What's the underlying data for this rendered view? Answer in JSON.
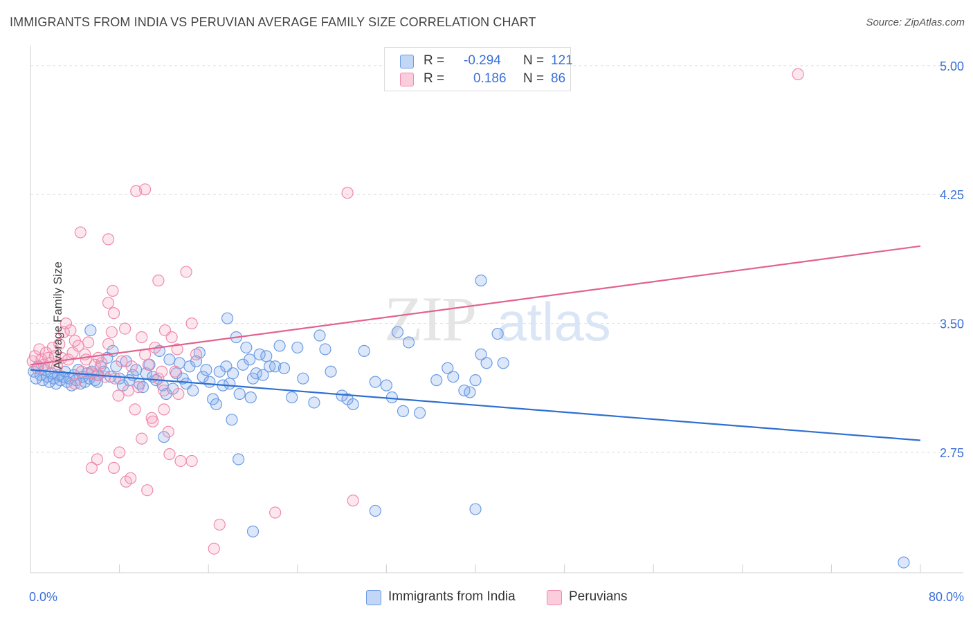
{
  "header": {
    "title": "IMMIGRANTS FROM INDIA VS PERUVIAN AVERAGE FAMILY SIZE CORRELATION CHART",
    "source": "Source: ZipAtlas.com"
  },
  "watermark": {
    "zip": "ZIP",
    "atlas": "atlas"
  },
  "legend_top": [
    {
      "r_label": "R =",
      "r_value": "-0.294",
      "n_label": "N =",
      "n_value": "121"
    },
    {
      "r_label": "R =",
      "r_value": "0.186",
      "n_label": "N =",
      "n_value": "86"
    }
  ],
  "legend_bottom": [
    "Immigrants from India",
    "Peruvians"
  ],
  "chart_data": {
    "type": "scatter",
    "title": "IMMIGRANTS FROM INDIA VS PERUVIAN AVERAGE FAMILY SIZE CORRELATION CHART",
    "xlabel": "",
    "ylabel": "Average Family Size",
    "xlim": [
      0,
      80
    ],
    "ylim": [
      2.05,
      5.1
    ],
    "x_tick_labels": [
      "0.0%",
      "80.0%"
    ],
    "y_ticks": [
      2.75,
      3.5,
      4.25,
      5.0
    ],
    "y_tick_labels": [
      "2.75",
      "3.50",
      "4.25",
      "5.00"
    ],
    "grid": true,
    "legend_position": "top-center",
    "colors": {
      "india": "#6a9be6",
      "peru": "#f08aaa",
      "india_line": "#2f6fd1",
      "peru_line": "#e2628e",
      "tick_label": "#3a6fd8"
    },
    "series": [
      {
        "name": "Immigrants from India",
        "r": -0.294,
        "n": 121,
        "trend": [
          [
            0,
            3.23
          ],
          [
            80,
            2.82
          ]
        ],
        "points": [
          [
            0.3,
            3.22
          ],
          [
            0.5,
            3.18
          ],
          [
            0.7,
            3.25
          ],
          [
            0.9,
            3.2
          ],
          [
            1.1,
            3.17
          ],
          [
            1.3,
            3.23
          ],
          [
            1.5,
            3.19
          ],
          [
            1.7,
            3.16
          ],
          [
            1.9,
            3.21
          ],
          [
            2.1,
            3.18
          ],
          [
            2.3,
            3.15
          ],
          [
            2.5,
            3.2
          ],
          [
            2.7,
            3.17
          ],
          [
            2.9,
            3.19
          ],
          [
            3.1,
            3.22
          ],
          [
            3.3,
            3.16
          ],
          [
            3.5,
            3.18
          ],
          [
            3.7,
            3.14
          ],
          [
            3.9,
            3.2
          ],
          [
            4.1,
            3.17
          ],
          [
            4.3,
            3.23
          ],
          [
            4.5,
            3.15
          ],
          [
            4.7,
            3.19
          ],
          [
            4.9,
            3.16
          ],
          [
            5.1,
            3.21
          ],
          [
            5.3,
            3.18
          ],
          [
            5.5,
            3.22
          ],
          [
            5.8,
            3.17
          ],
          [
            6.1,
            3.2
          ],
          [
            6.3,
            3.25
          ],
          [
            5.4,
            3.46
          ],
          [
            6.0,
            3.16
          ],
          [
            6.6,
            3.22
          ],
          [
            6.9,
            3.3
          ],
          [
            7.2,
            3.19
          ],
          [
            7.4,
            3.34
          ],
          [
            7.7,
            3.25
          ],
          [
            8.0,
            3.18
          ],
          [
            8.3,
            3.14
          ],
          [
            8.6,
            3.28
          ],
          [
            8.9,
            3.17
          ],
          [
            9.2,
            3.2
          ],
          [
            9.5,
            3.23
          ],
          [
            9.8,
            3.15
          ],
          [
            10.1,
            3.13
          ],
          [
            10.4,
            3.21
          ],
          [
            10.7,
            3.26
          ],
          [
            11.0,
            3.19
          ],
          [
            11.3,
            3.17
          ],
          [
            11.6,
            3.34
          ],
          [
            11.9,
            3.14
          ],
          [
            12.2,
            3.09
          ],
          [
            12.5,
            3.29
          ],
          [
            12.8,
            3.12
          ],
          [
            13.1,
            3.21
          ],
          [
            13.4,
            3.27
          ],
          [
            13.7,
            3.18
          ],
          [
            14.0,
            3.15
          ],
          [
            14.3,
            3.25
          ],
          [
            14.6,
            3.11
          ],
          [
            14.9,
            3.28
          ],
          [
            15.2,
            3.33
          ],
          [
            15.5,
            3.19
          ],
          [
            15.8,
            3.23
          ],
          [
            16.1,
            3.16
          ],
          [
            16.4,
            3.06
          ],
          [
            16.7,
            3.03
          ],
          [
            17.0,
            3.22
          ],
          [
            17.3,
            3.14
          ],
          [
            17.6,
            3.25
          ],
          [
            17.9,
            3.15
          ],
          [
            18.2,
            3.21
          ],
          [
            18.5,
            3.42
          ],
          [
            18.8,
            3.09
          ],
          [
            19.1,
            3.26
          ],
          [
            19.4,
            3.36
          ],
          [
            19.7,
            3.29
          ],
          [
            20.0,
            3.18
          ],
          [
            20.3,
            3.21
          ],
          [
            20.6,
            3.32
          ],
          [
            20.9,
            3.2
          ],
          [
            21.2,
            3.31
          ],
          [
            21.5,
            3.25
          ],
          [
            12.0,
            2.84
          ],
          [
            18.1,
            2.94
          ],
          [
            19.8,
            3.07
          ],
          [
            22.0,
            3.25
          ],
          [
            22.4,
            3.37
          ],
          [
            22.8,
            3.24
          ],
          [
            23.5,
            3.07
          ],
          [
            24.0,
            3.36
          ],
          [
            24.5,
            3.18
          ],
          [
            25.5,
            3.04
          ],
          [
            26.0,
            3.43
          ],
          [
            26.5,
            3.35
          ],
          [
            27.0,
            3.22
          ],
          [
            28.0,
            3.08
          ],
          [
            28.5,
            3.06
          ],
          [
            29.0,
            3.03
          ],
          [
            30.0,
            3.34
          ],
          [
            31.0,
            3.16
          ],
          [
            32.0,
            3.14
          ],
          [
            32.5,
            3.07
          ],
          [
            33.0,
            3.45
          ],
          [
            33.5,
            2.99
          ],
          [
            34.0,
            3.39
          ],
          [
            35.0,
            2.98
          ],
          [
            36.5,
            3.17
          ],
          [
            37.5,
            3.24
          ],
          [
            38.0,
            3.19
          ],
          [
            39.0,
            3.11
          ],
          [
            39.5,
            3.1
          ],
          [
            40.0,
            3.17
          ],
          [
            41.0,
            3.27
          ],
          [
            42.0,
            3.44
          ],
          [
            42.5,
            3.27
          ],
          [
            40.5,
            3.32
          ],
          [
            17.7,
            3.53
          ],
          [
            40.5,
            3.75
          ],
          [
            18.7,
            2.71
          ],
          [
            20.0,
            2.29
          ],
          [
            31.0,
            2.41
          ],
          [
            40.0,
            2.42
          ],
          [
            78.5,
            2.11
          ]
        ]
      },
      {
        "name": "Peruvians",
        "r": 0.186,
        "n": 86,
        "trend": [
          [
            0,
            3.26
          ],
          [
            80,
            3.95
          ]
        ],
        "points": [
          [
            0.2,
            3.28
          ],
          [
            0.4,
            3.31
          ],
          [
            0.6,
            3.24
          ],
          [
            0.8,
            3.35
          ],
          [
            1.0,
            3.29
          ],
          [
            1.2,
            3.26
          ],
          [
            1.4,
            3.33
          ],
          [
            1.6,
            3.3
          ],
          [
            1.8,
            3.27
          ],
          [
            2.0,
            3.36
          ],
          [
            2.2,
            3.31
          ],
          [
            2.4,
            3.25
          ],
          [
            2.6,
            3.38
          ],
          [
            2.8,
            3.3
          ],
          [
            3.0,
            3.45
          ],
          [
            3.2,
            3.5
          ],
          [
            3.4,
            3.29
          ],
          [
            3.6,
            3.46
          ],
          [
            3.8,
            3.33
          ],
          [
            4.0,
            3.4
          ],
          [
            4.3,
            3.37
          ],
          [
            4.6,
            3.22
          ],
          [
            4.9,
            3.32
          ],
          [
            5.2,
            3.39
          ],
          [
            5.5,
            3.21
          ],
          [
            5.8,
            3.26
          ],
          [
            6.1,
            3.3
          ],
          [
            6.4,
            3.27
          ],
          [
            6.7,
            3.19
          ],
          [
            7.0,
            3.38
          ],
          [
            7.3,
            3.45
          ],
          [
            7.6,
            3.18
          ],
          [
            7.9,
            3.08
          ],
          [
            8.2,
            3.28
          ],
          [
            8.5,
            3.47
          ],
          [
            8.8,
            3.11
          ],
          [
            9.1,
            3.25
          ],
          [
            9.4,
            3.0
          ],
          [
            9.7,
            3.13
          ],
          [
            10.0,
            3.42
          ],
          [
            10.3,
            3.32
          ],
          [
            10.6,
            3.26
          ],
          [
            10.9,
            2.95
          ],
          [
            11.2,
            3.36
          ],
          [
            11.5,
            3.18
          ],
          [
            11.8,
            3.22
          ],
          [
            12.1,
            3.46
          ],
          [
            12.4,
            2.87
          ],
          [
            12.7,
            3.42
          ],
          [
            13.0,
            3.22
          ],
          [
            13.3,
            3.09
          ],
          [
            4.5,
            4.03
          ],
          [
            7.0,
            3.62
          ],
          [
            7.5,
            3.56
          ],
          [
            7.4,
            3.69
          ],
          [
            9.5,
            4.27
          ],
          [
            10.3,
            4.28
          ],
          [
            7.0,
            3.99
          ],
          [
            11.5,
            3.75
          ],
          [
            14.0,
            3.8
          ],
          [
            14.5,
            3.5
          ],
          [
            12.0,
            3.11
          ],
          [
            13.2,
            3.35
          ],
          [
            14.9,
            3.32
          ],
          [
            5.0,
            3.29
          ],
          [
            6.0,
            3.2
          ],
          [
            8.0,
            2.75
          ],
          [
            6.0,
            2.71
          ],
          [
            5.5,
            2.66
          ],
          [
            7.5,
            2.66
          ],
          [
            8.6,
            2.58
          ],
          [
            9.0,
            2.6
          ],
          [
            10.5,
            2.53
          ],
          [
            12.5,
            2.74
          ],
          [
            13.5,
            2.7
          ],
          [
            14.5,
            2.7
          ],
          [
            17.0,
            2.33
          ],
          [
            16.5,
            2.19
          ],
          [
            22.0,
            2.4
          ],
          [
            29.0,
            2.47
          ],
          [
            28.5,
            4.26
          ],
          [
            69.0,
            4.95
          ],
          [
            10.0,
            2.83
          ],
          [
            11.0,
            2.93
          ],
          [
            12.0,
            3.0
          ],
          [
            4.0,
            3.15
          ]
        ]
      }
    ]
  }
}
